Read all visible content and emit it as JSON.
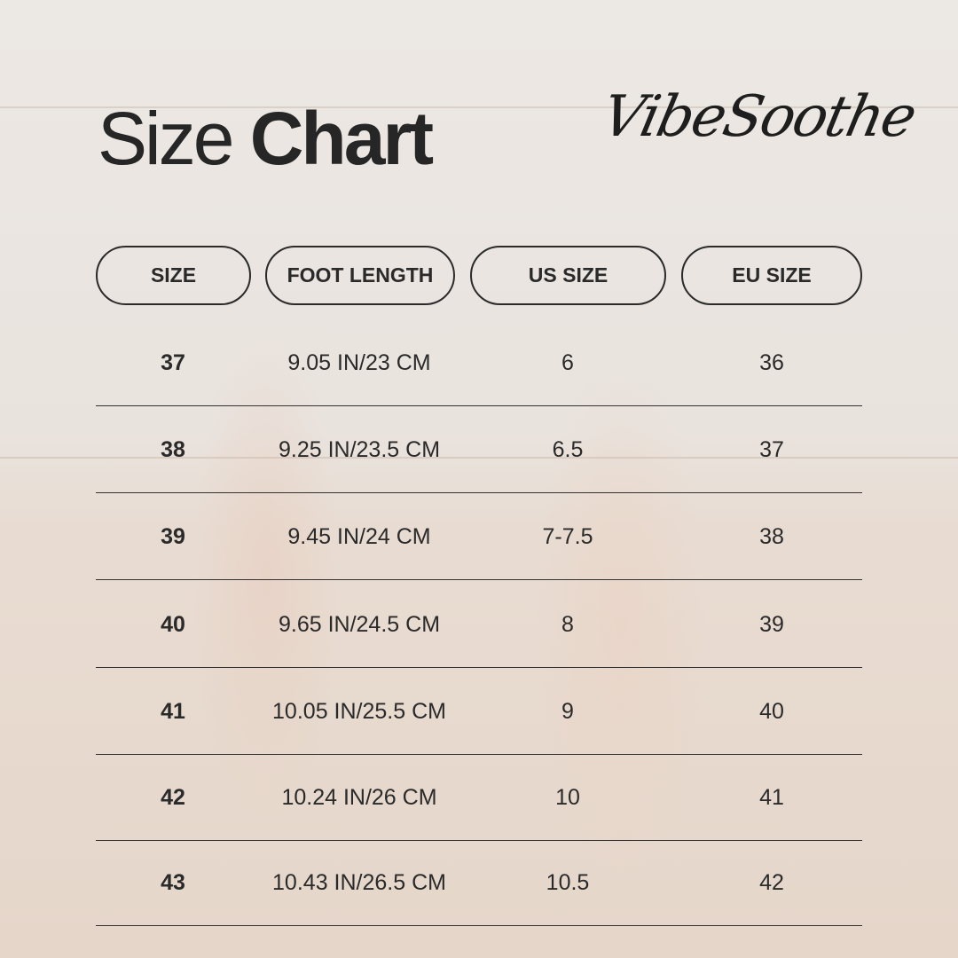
{
  "title": {
    "light": "Size",
    "bold": "Chart"
  },
  "logo": "VibeSoothe",
  "headers": [
    "SIZE",
    "FOOT LENGTH",
    "US SIZE",
    "EU SIZE"
  ],
  "rows": [
    {
      "size": "37",
      "foot": "9.05 IN/23 CM",
      "us": "6",
      "eu": "36"
    },
    {
      "size": "38",
      "foot": "9.25 IN/23.5 CM",
      "us": "6.5",
      "eu": "37"
    },
    {
      "size": "39",
      "foot": "9.45 IN/24 CM",
      "us": "7-7.5",
      "eu": "38"
    },
    {
      "size": "40",
      "foot": "9.65 IN/24.5 CM",
      "us": "8",
      "eu": "39"
    },
    {
      "size": "41",
      "foot": "10.05 IN/25.5 CM",
      "us": "9",
      "eu": "40"
    },
    {
      "size": "42",
      "foot": "10.24 IN/26 CM",
      "us": "10",
      "eu": "41"
    },
    {
      "size": "43",
      "foot": "10.43 IN/26.5 CM",
      "us": "10.5",
      "eu": "42"
    }
  ]
}
